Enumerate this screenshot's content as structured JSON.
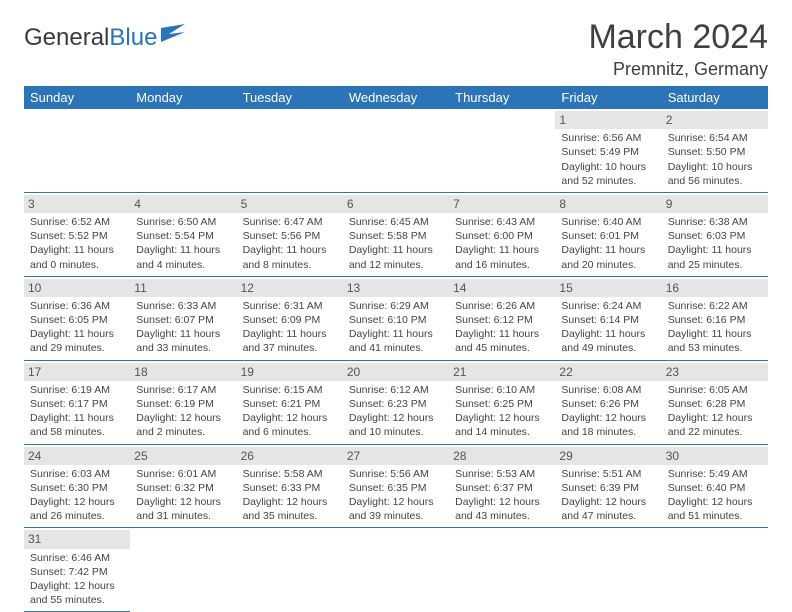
{
  "logo": {
    "text1": "General",
    "text2": "Blue"
  },
  "title": "March 2024",
  "location": "Premnitz, Germany",
  "headers": [
    "Sunday",
    "Monday",
    "Tuesday",
    "Wednesday",
    "Thursday",
    "Friday",
    "Saturday"
  ],
  "colors": {
    "header_bg": "#2b74b8",
    "header_fg": "#ffffff",
    "daynum_bg": "#e5e5e5",
    "border": "#2b74b8",
    "text": "#444444"
  },
  "weeks": [
    [
      null,
      null,
      null,
      null,
      null,
      {
        "n": "1",
        "sr": "6:56 AM",
        "ss": "5:49 PM",
        "dl": "10 hours and 52 minutes."
      },
      {
        "n": "2",
        "sr": "6:54 AM",
        "ss": "5:50 PM",
        "dl": "10 hours and 56 minutes."
      }
    ],
    [
      {
        "n": "3",
        "sr": "6:52 AM",
        "ss": "5:52 PM",
        "dl": "11 hours and 0 minutes."
      },
      {
        "n": "4",
        "sr": "6:50 AM",
        "ss": "5:54 PM",
        "dl": "11 hours and 4 minutes."
      },
      {
        "n": "5",
        "sr": "6:47 AM",
        "ss": "5:56 PM",
        "dl": "11 hours and 8 minutes."
      },
      {
        "n": "6",
        "sr": "6:45 AM",
        "ss": "5:58 PM",
        "dl": "11 hours and 12 minutes."
      },
      {
        "n": "7",
        "sr": "6:43 AM",
        "ss": "6:00 PM",
        "dl": "11 hours and 16 minutes."
      },
      {
        "n": "8",
        "sr": "6:40 AM",
        "ss": "6:01 PM",
        "dl": "11 hours and 20 minutes."
      },
      {
        "n": "9",
        "sr": "6:38 AM",
        "ss": "6:03 PM",
        "dl": "11 hours and 25 minutes."
      }
    ],
    [
      {
        "n": "10",
        "sr": "6:36 AM",
        "ss": "6:05 PM",
        "dl": "11 hours and 29 minutes."
      },
      {
        "n": "11",
        "sr": "6:33 AM",
        "ss": "6:07 PM",
        "dl": "11 hours and 33 minutes."
      },
      {
        "n": "12",
        "sr": "6:31 AM",
        "ss": "6:09 PM",
        "dl": "11 hours and 37 minutes."
      },
      {
        "n": "13",
        "sr": "6:29 AM",
        "ss": "6:10 PM",
        "dl": "11 hours and 41 minutes."
      },
      {
        "n": "14",
        "sr": "6:26 AM",
        "ss": "6:12 PM",
        "dl": "11 hours and 45 minutes."
      },
      {
        "n": "15",
        "sr": "6:24 AM",
        "ss": "6:14 PM",
        "dl": "11 hours and 49 minutes."
      },
      {
        "n": "16",
        "sr": "6:22 AM",
        "ss": "6:16 PM",
        "dl": "11 hours and 53 minutes."
      }
    ],
    [
      {
        "n": "17",
        "sr": "6:19 AM",
        "ss": "6:17 PM",
        "dl": "11 hours and 58 minutes."
      },
      {
        "n": "18",
        "sr": "6:17 AM",
        "ss": "6:19 PM",
        "dl": "12 hours and 2 minutes."
      },
      {
        "n": "19",
        "sr": "6:15 AM",
        "ss": "6:21 PM",
        "dl": "12 hours and 6 minutes."
      },
      {
        "n": "20",
        "sr": "6:12 AM",
        "ss": "6:23 PM",
        "dl": "12 hours and 10 minutes."
      },
      {
        "n": "21",
        "sr": "6:10 AM",
        "ss": "6:25 PM",
        "dl": "12 hours and 14 minutes."
      },
      {
        "n": "22",
        "sr": "6:08 AM",
        "ss": "6:26 PM",
        "dl": "12 hours and 18 minutes."
      },
      {
        "n": "23",
        "sr": "6:05 AM",
        "ss": "6:28 PM",
        "dl": "12 hours and 22 minutes."
      }
    ],
    [
      {
        "n": "24",
        "sr": "6:03 AM",
        "ss": "6:30 PM",
        "dl": "12 hours and 26 minutes."
      },
      {
        "n": "25",
        "sr": "6:01 AM",
        "ss": "6:32 PM",
        "dl": "12 hours and 31 minutes."
      },
      {
        "n": "26",
        "sr": "5:58 AM",
        "ss": "6:33 PM",
        "dl": "12 hours and 35 minutes."
      },
      {
        "n": "27",
        "sr": "5:56 AM",
        "ss": "6:35 PM",
        "dl": "12 hours and 39 minutes."
      },
      {
        "n": "28",
        "sr": "5:53 AM",
        "ss": "6:37 PM",
        "dl": "12 hours and 43 minutes."
      },
      {
        "n": "29",
        "sr": "5:51 AM",
        "ss": "6:39 PM",
        "dl": "12 hours and 47 minutes."
      },
      {
        "n": "30",
        "sr": "5:49 AM",
        "ss": "6:40 PM",
        "dl": "12 hours and 51 minutes."
      }
    ],
    [
      {
        "n": "31",
        "sr": "6:46 AM",
        "ss": "7:42 PM",
        "dl": "12 hours and 55 minutes."
      },
      null,
      null,
      null,
      null,
      null,
      null
    ]
  ],
  "labels": {
    "sunrise": "Sunrise: ",
    "sunset": "Sunset: ",
    "daylight": "Daylight: "
  }
}
